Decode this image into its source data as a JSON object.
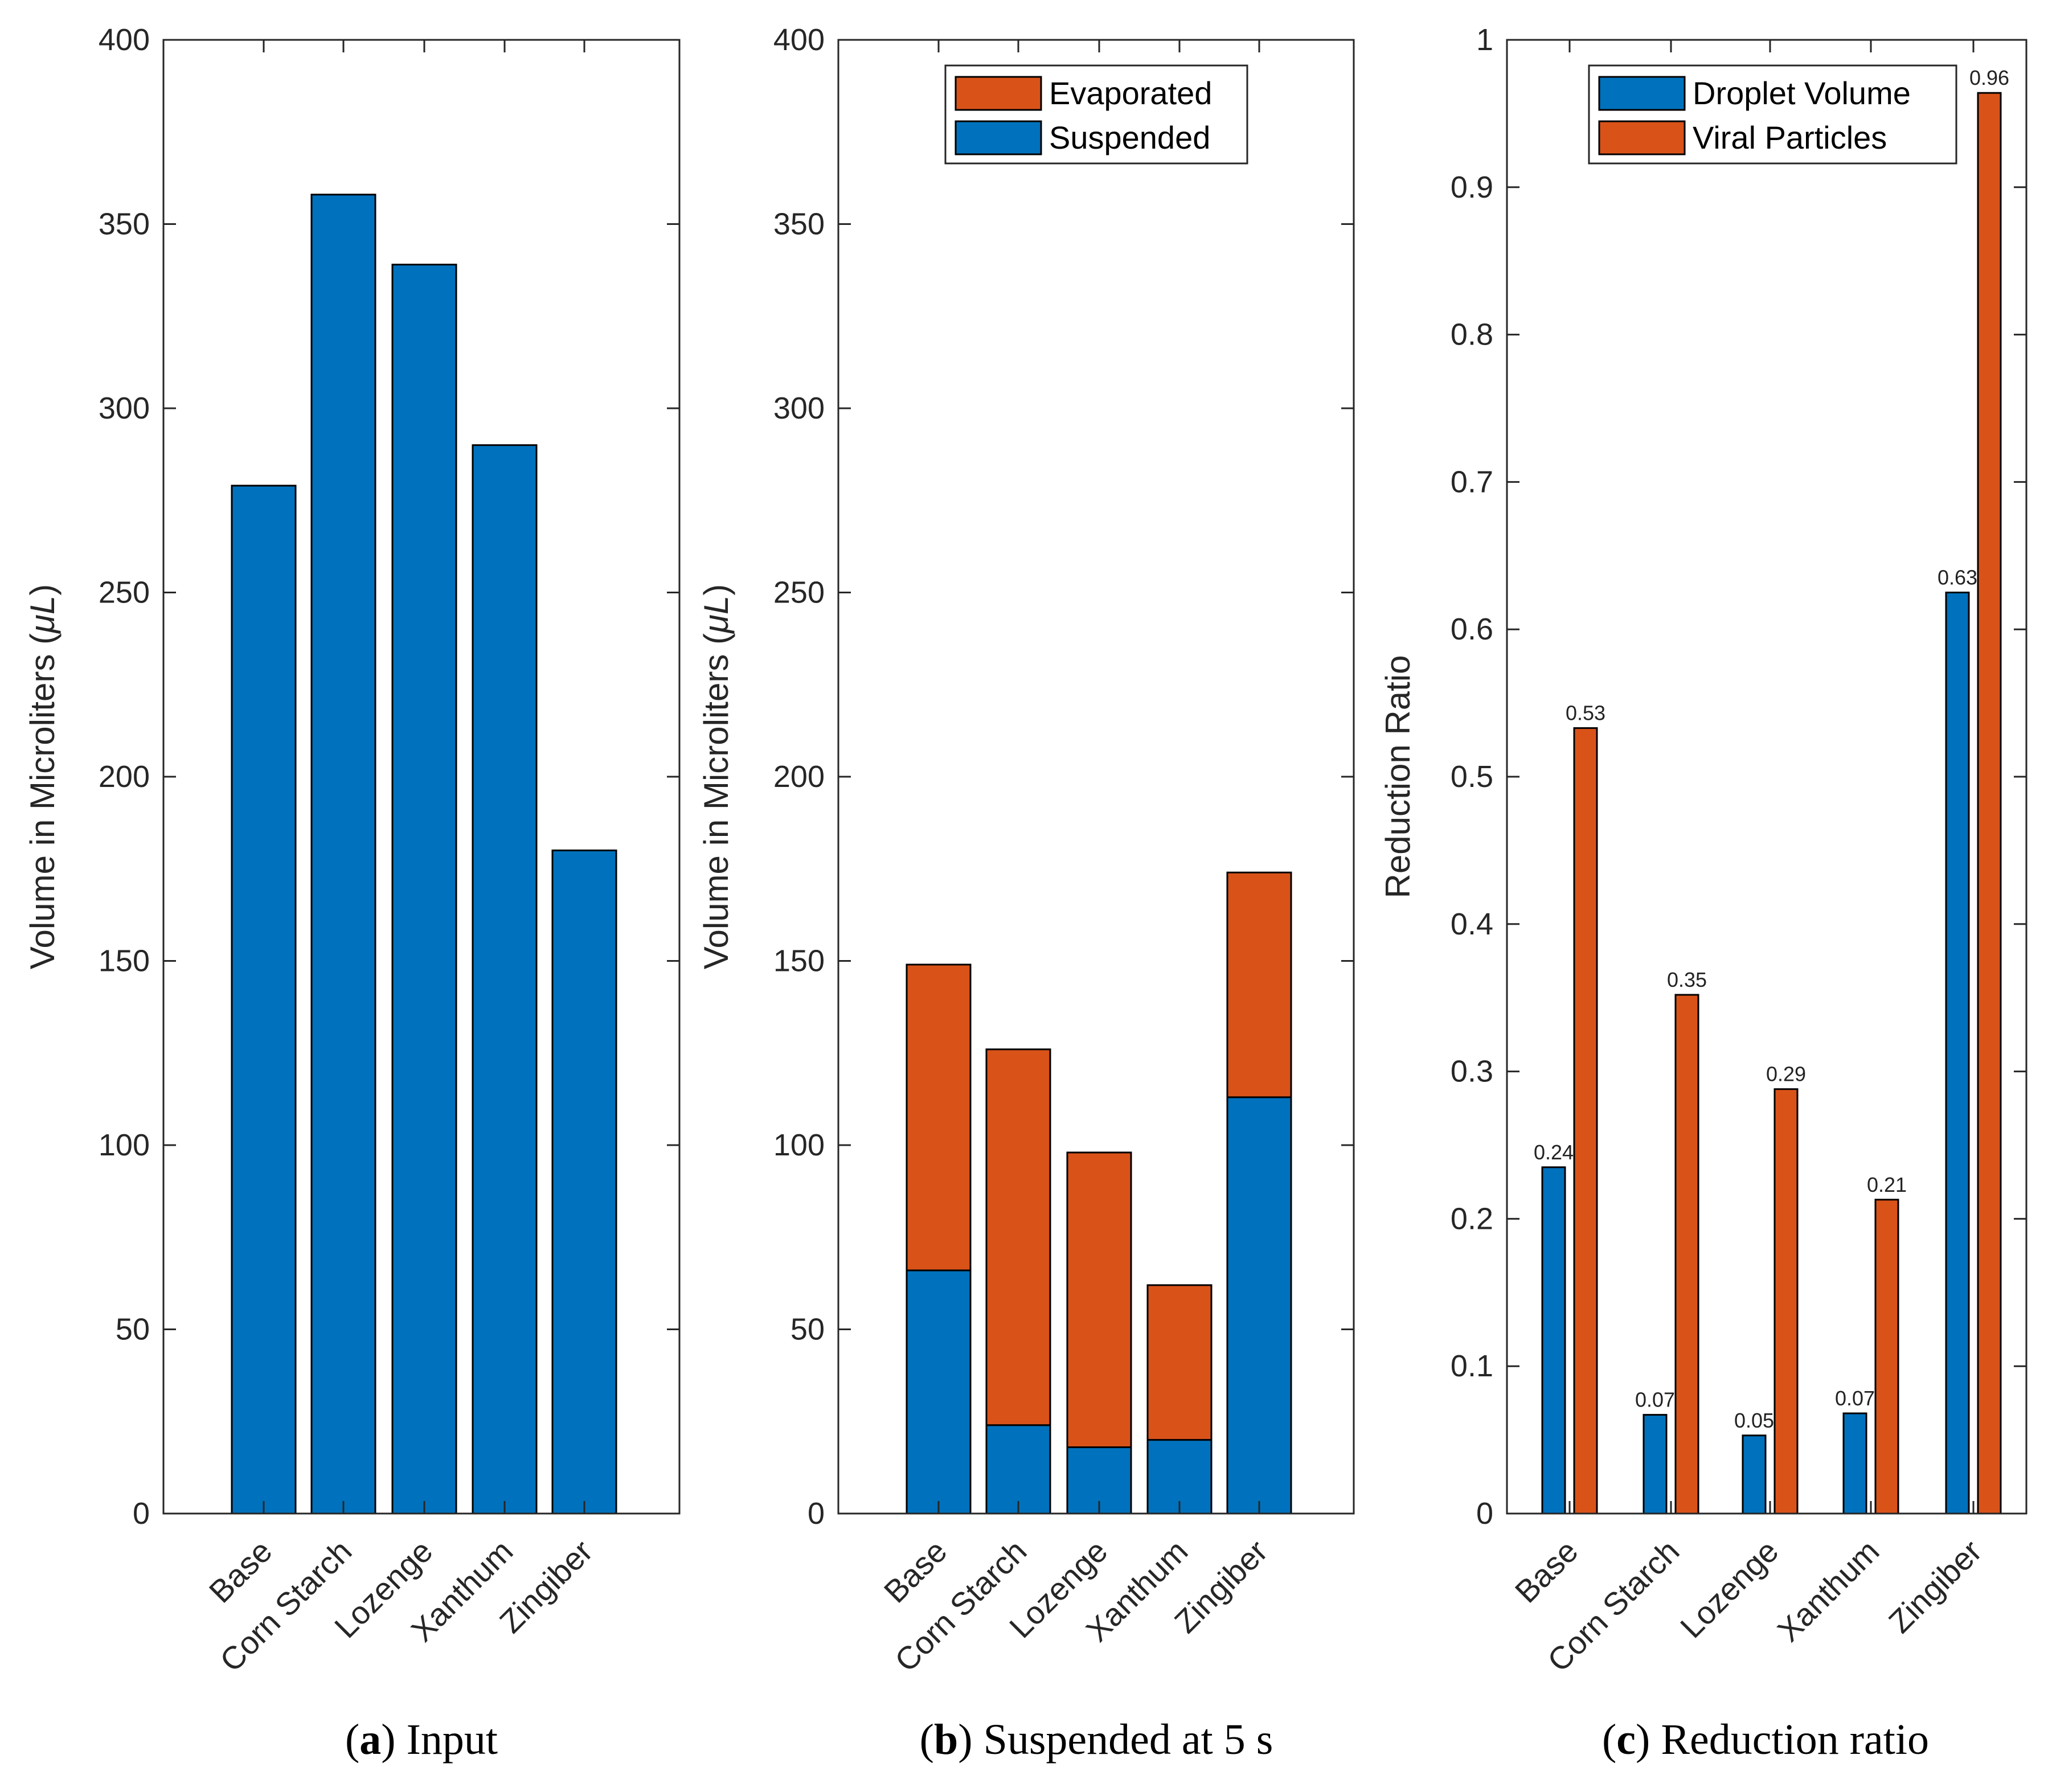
{
  "colors": {
    "blue": "#0072bd",
    "orange": "#d95319",
    "axis": "#262626"
  },
  "chart_data": [
    {
      "type": "bar",
      "caption": {
        "letter": "a",
        "text": ") Input"
      },
      "categories": [
        "Base",
        "Corn Starch",
        "Lozenge",
        "Xanthum",
        "Zingiber"
      ],
      "series": [
        {
          "name": "Input",
          "values": [
            279,
            358,
            339,
            290,
            180
          ]
        }
      ],
      "ylabel_main": "Volume in Microliters (",
      "ylabel_unit": "μL",
      "ylabel_end": ")",
      "ylim": [
        0,
        400
      ],
      "yticks": [
        "0",
        "50",
        "100",
        "150",
        "200",
        "250",
        "300",
        "350",
        "400"
      ],
      "legend": null
    },
    {
      "type": "bar",
      "stacked": true,
      "caption": {
        "letter": "b",
        "text": ") Suspended at 5 s"
      },
      "categories": [
        "Base",
        "Corn Starch",
        "Lozenge",
        "Xanthum",
        "Zingiber"
      ],
      "series": [
        {
          "name": "Suspended",
          "values": [
            66,
            24,
            18,
            20,
            113
          ]
        },
        {
          "name": "Evaporated",
          "values": [
            83,
            102,
            80,
            42,
            61
          ]
        }
      ],
      "ylabel_main": "Volume in Microliters (",
      "ylabel_unit": "μL",
      "ylabel_end": ")",
      "ylim": [
        0,
        400
      ],
      "yticks": [
        "0",
        "50",
        "100",
        "150",
        "200",
        "250",
        "300",
        "350",
        "400"
      ],
      "legend": {
        "position": "top-right",
        "entries": [
          "Evaporated",
          "Suspended"
        ]
      }
    },
    {
      "type": "bar",
      "grouped": true,
      "caption": {
        "letter": "c",
        "text": ") Reduction ratio"
      },
      "categories": [
        "Base",
        "Corn Starch",
        "Lozenge",
        "Xanthum",
        "Zingiber"
      ],
      "series": [
        {
          "name": "Droplet Volume",
          "values": [
            0.235,
            0.067,
            0.053,
            0.068,
            0.625
          ],
          "labels": [
            "0.24",
            "0.07",
            "0.05",
            "0.07",
            "0.63"
          ]
        },
        {
          "name": "Viral Particles",
          "values": [
            0.533,
            0.352,
            0.288,
            0.213,
            0.964
          ],
          "labels": [
            "0.53",
            "0.35",
            "0.29",
            "0.21",
            "0.96"
          ]
        }
      ],
      "ylabel_main": "Reduction Ratio",
      "ylim": [
        0,
        1
      ],
      "yticks": [
        "0",
        "0.1",
        "0.2",
        "0.3",
        "0.4",
        "0.5",
        "0.6",
        "0.7",
        "0.8",
        "0.9",
        "1"
      ],
      "legend": {
        "position": "top-right",
        "entries": [
          "Droplet Volume",
          "Viral Particles"
        ]
      }
    }
  ]
}
